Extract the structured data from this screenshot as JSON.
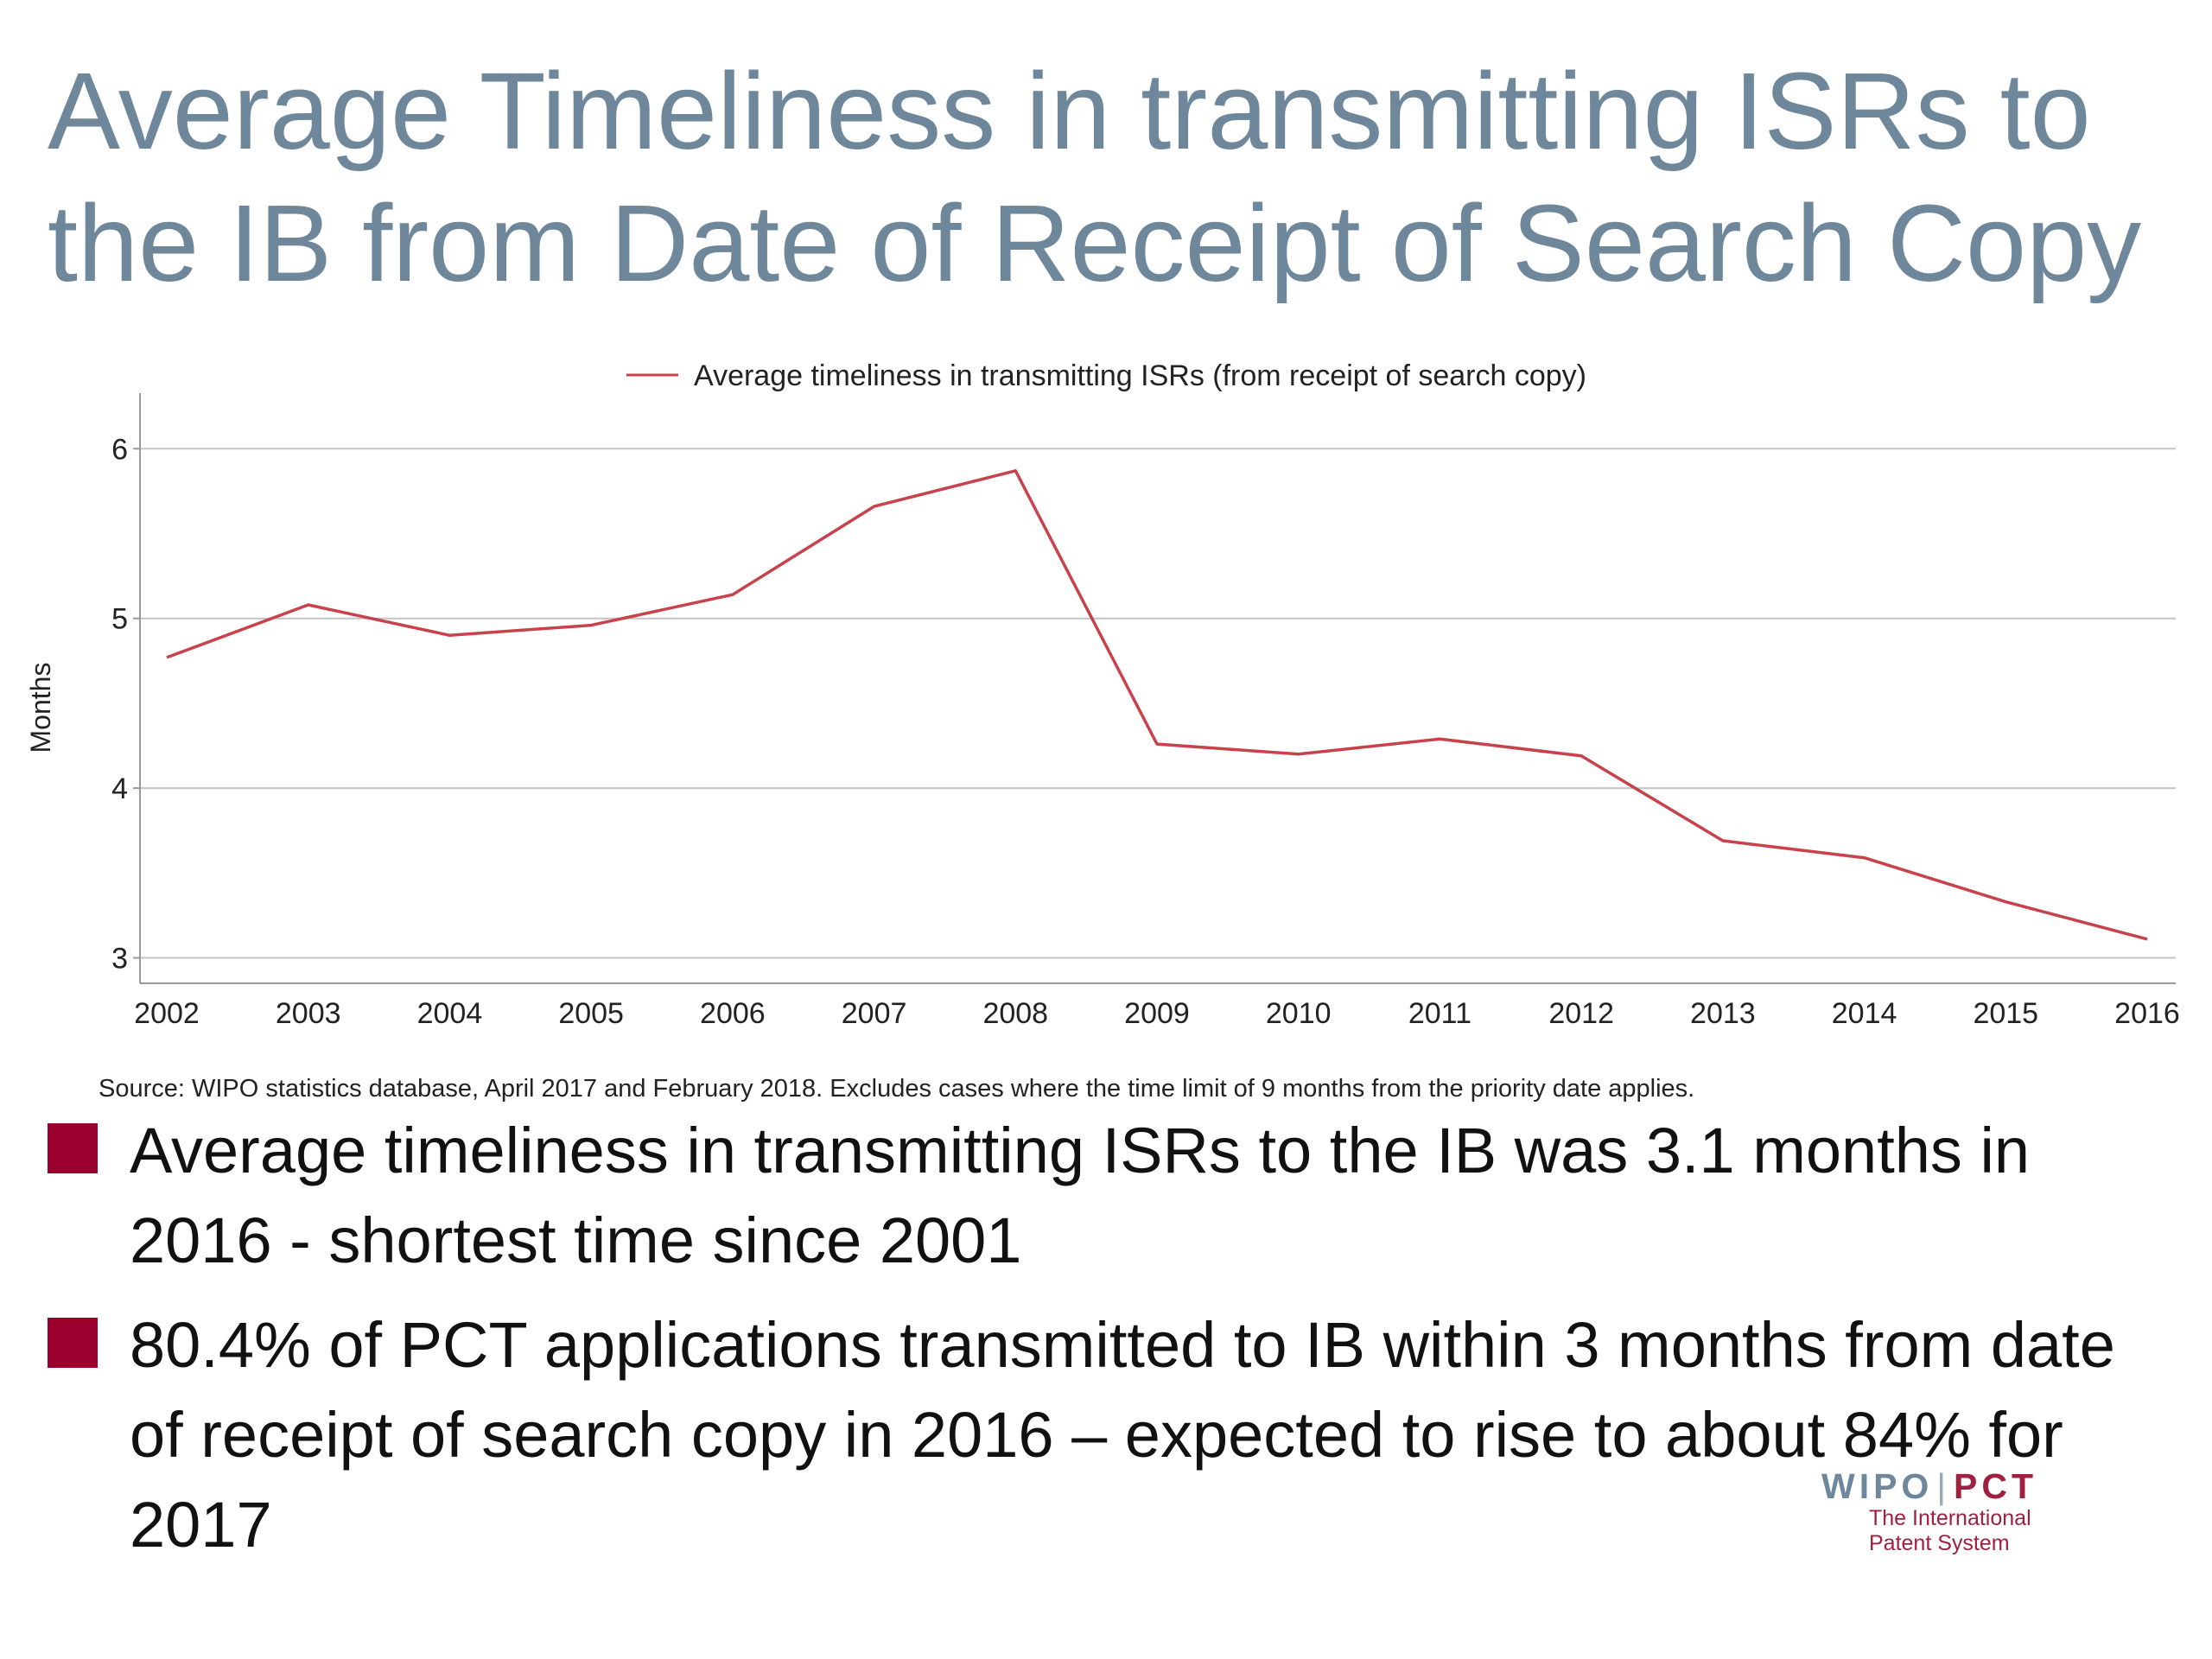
{
  "slide": {
    "title": "Average Timeliness in transmitting ISRs to the IB from Date of Receipt of Search Copy",
    "source_note": "Source: WIPO statistics database, April 2017 and February 2018.  Excludes cases where the time limit of 9 months from the priority date applies.",
    "bullets": [
      "Average timeliness in transmitting ISRs to the IB was 3.1 months in 2016 - shortest time since 2001",
      "80.4% of PCT applications transmitted to IB within 3 months from date of receipt of search copy in 2016 – expected to rise to about 84% for 2017"
    ],
    "bullet_color": "#99002e",
    "title_color": "#6f879b"
  },
  "logo": {
    "wipo": "WIPO",
    "separator": "|",
    "pct": "PCT",
    "subtitle_line1": "The International",
    "subtitle_line2": "Patent System"
  },
  "chart_data": {
    "type": "line",
    "categories": [
      "2002",
      "2003",
      "2004",
      "2005",
      "2006",
      "2007",
      "2008",
      "2009",
      "2010",
      "2011",
      "2012",
      "2013",
      "2014",
      "2015",
      "2016"
    ],
    "series": [
      {
        "name": "Average timeliness in transmitting ISRs (from receipt of search copy)",
        "color": "#c8424b",
        "values": [
          4.77,
          5.08,
          4.9,
          4.96,
          5.14,
          5.66,
          5.87,
          4.26,
          4.2,
          4.29,
          4.19,
          3.69,
          3.59,
          3.33,
          3.11
        ]
      }
    ],
    "title": "",
    "xlabel": "",
    "ylabel": "Months",
    "ylim": [
      2.85,
      6.2
    ],
    "yticks": [
      3,
      4,
      5,
      6
    ],
    "grid": true,
    "legend": "top-center"
  }
}
